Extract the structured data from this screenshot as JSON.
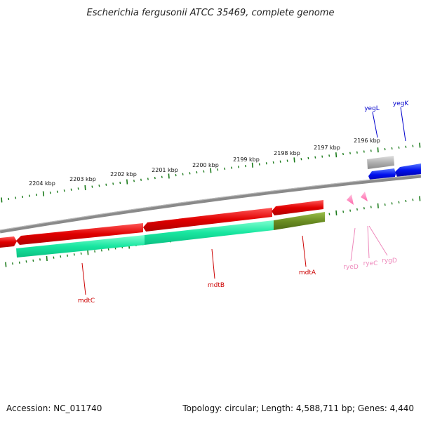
{
  "title": "Escherichia fergusonii ATCC 35469, complete genome",
  "accession": "Accession: NC_011740",
  "summary": "Topology: circular; Length: 4,588,711 bp; Genes: 4,440",
  "scale": {
    "tick_labels": [
      "2204 kbp",
      "2203 kbp",
      "2202 kbp",
      "2201 kbp",
      "2200 kbp",
      "2199 kbp",
      "2198 kbp",
      "2197 kbp",
      "2196 kbp"
    ]
  },
  "genes": [
    {
      "name": "mdtC",
      "color": "#cc0000"
    },
    {
      "name": "mdtB",
      "color": "#cc0000"
    },
    {
      "name": "mdtA",
      "color": "#cc0000"
    },
    {
      "name": "ryeD",
      "color": "#ee88bb"
    },
    {
      "name": "ryeC",
      "color": "#ee88bb"
    },
    {
      "name": "rygD",
      "color": "#ee88bb"
    },
    {
      "name": "yegL",
      "color": "#0000cc"
    },
    {
      "name": "yegK",
      "color": "#0000cc"
    }
  ],
  "colors": {
    "cds": "#ee0000",
    "gene": "#00e89a",
    "gene_alt": "#6b8e23",
    "ncrna": "#ff77bb",
    "reverse_cds": "#0000ee",
    "backbone": "#888888",
    "ticks": "#1a7a1a"
  }
}
